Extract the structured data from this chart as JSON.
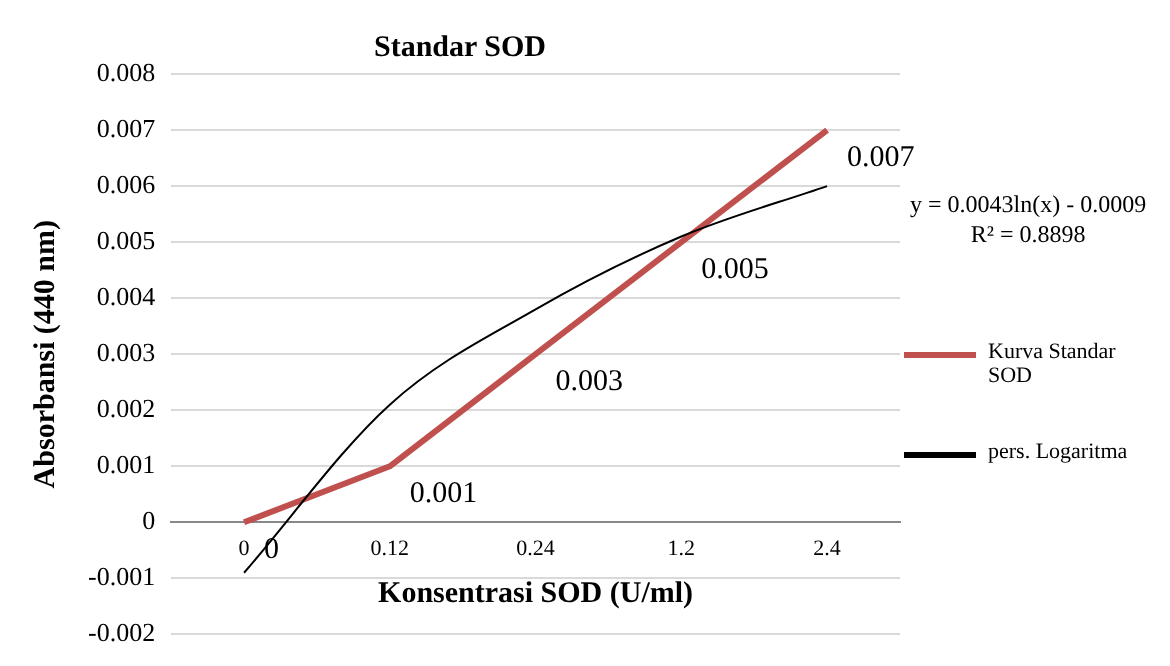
{
  "chart_data": {
    "type": "line",
    "title": "Standar SOD",
    "xlabel": "Konsentrasi SOD (U/ml)",
    "ylabel": "Absorbansi (440 nm)",
    "categories": [
      "0",
      "0.12",
      "0.24",
      "1.2",
      "2.4"
    ],
    "series": [
      {
        "name": "Kurva Standar SOD",
        "color": "#c0504d",
        "values": [
          0,
          0.001,
          0.003,
          0.005,
          0.007
        ],
        "data_labels": true
      },
      {
        "name": "pers. Logaritma",
        "type": "line",
        "color": "#000000",
        "values": [
          -0.0009,
          0.0021,
          0.0038,
          0.0051,
          0.006
        ]
      }
    ],
    "ylim": [
      -0.002,
      0.008
    ],
    "yticks": [
      -0.002,
      -0.001,
      0,
      0.001,
      0.002,
      0.003,
      0.004,
      0.005,
      0.006,
      0.007,
      0.008
    ],
    "grid": "y",
    "legend": "right",
    "marker": "none",
    "annotations": [
      "y = 0.0043ln(x) - 0.0009",
      "R² = 0.8898"
    ]
  }
}
